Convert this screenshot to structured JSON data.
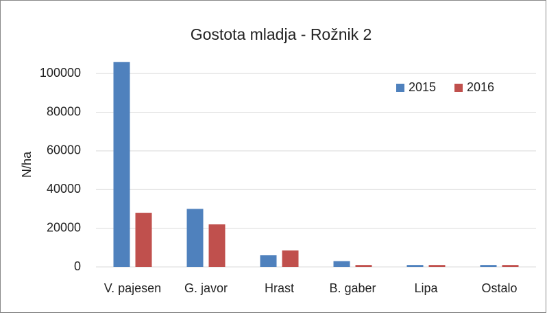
{
  "chart_data": {
    "type": "bar",
    "title": "Gostota mladja - Rožnik 2",
    "y_label": "N/ha",
    "categories": [
      "V. pajesen",
      "G. javor",
      "Hrast",
      "B. gaber",
      "Lipa",
      "Ostalo"
    ],
    "series": [
      {
        "name": "2015",
        "color": "#4f81bd",
        "values": [
          106000,
          30000,
          6000,
          3000,
          1000,
          1000
        ]
      },
      {
        "name": "2016",
        "color": "#c0504d",
        "values": [
          28000,
          22000,
          8500,
          1000,
          1000,
          1000
        ]
      }
    ],
    "ylim": [
      0,
      110000
    ],
    "yticks": [
      0,
      20000,
      40000,
      60000,
      80000,
      100000
    ],
    "grid": true,
    "legend": "top-right"
  }
}
